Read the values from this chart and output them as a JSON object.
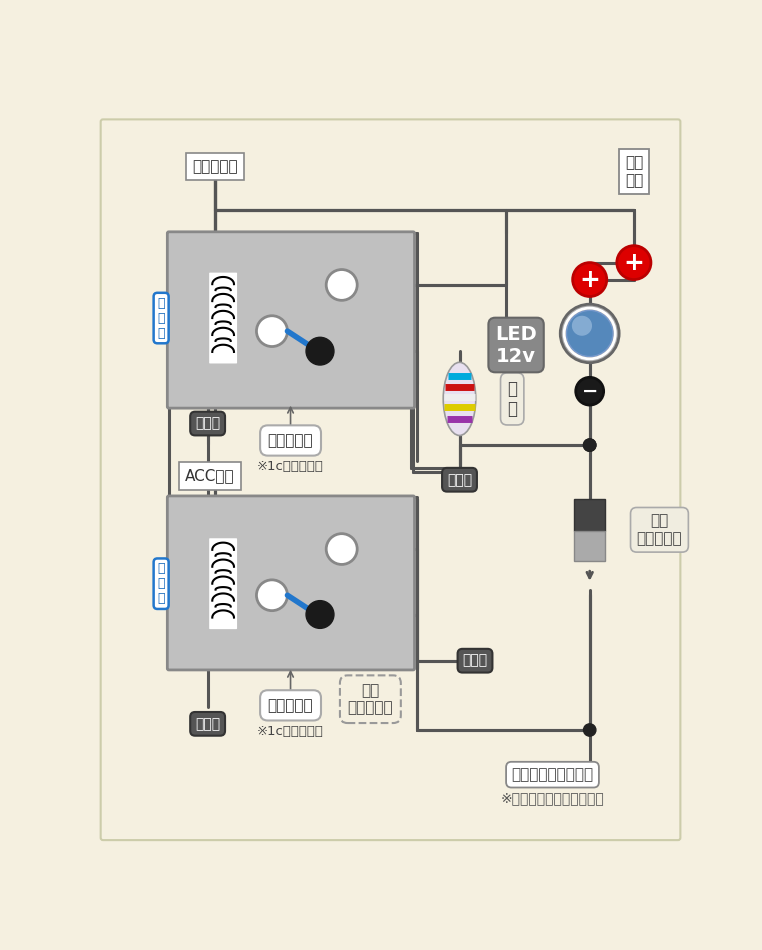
{
  "bg_color": "#f5f0e0",
  "relay_color": "#c0c0c0",
  "relay_border": "#888888",
  "wire_color": "#555555",
  "blue_wire": "#2277cc",
  "earth_color": "#555555",
  "wire_lw": 2.2,
  "labels": {
    "ilumi": "イルミ電源",
    "acc": "ACC電源",
    "joji": "常時\n電源",
    "led": "LED\n12v",
    "diode": "整流\nダイオード",
    "teikou": "抵\n抗",
    "coil": "コイ\nル",
    "relay": "５極リレー",
    "relay_sub": "※1c接点リレー",
    "earth": "アース",
    "nani": "何も\nつながない",
    "room": "ルームランプ連動線",
    "room_sub": "※マイナスコントロール線"
  }
}
